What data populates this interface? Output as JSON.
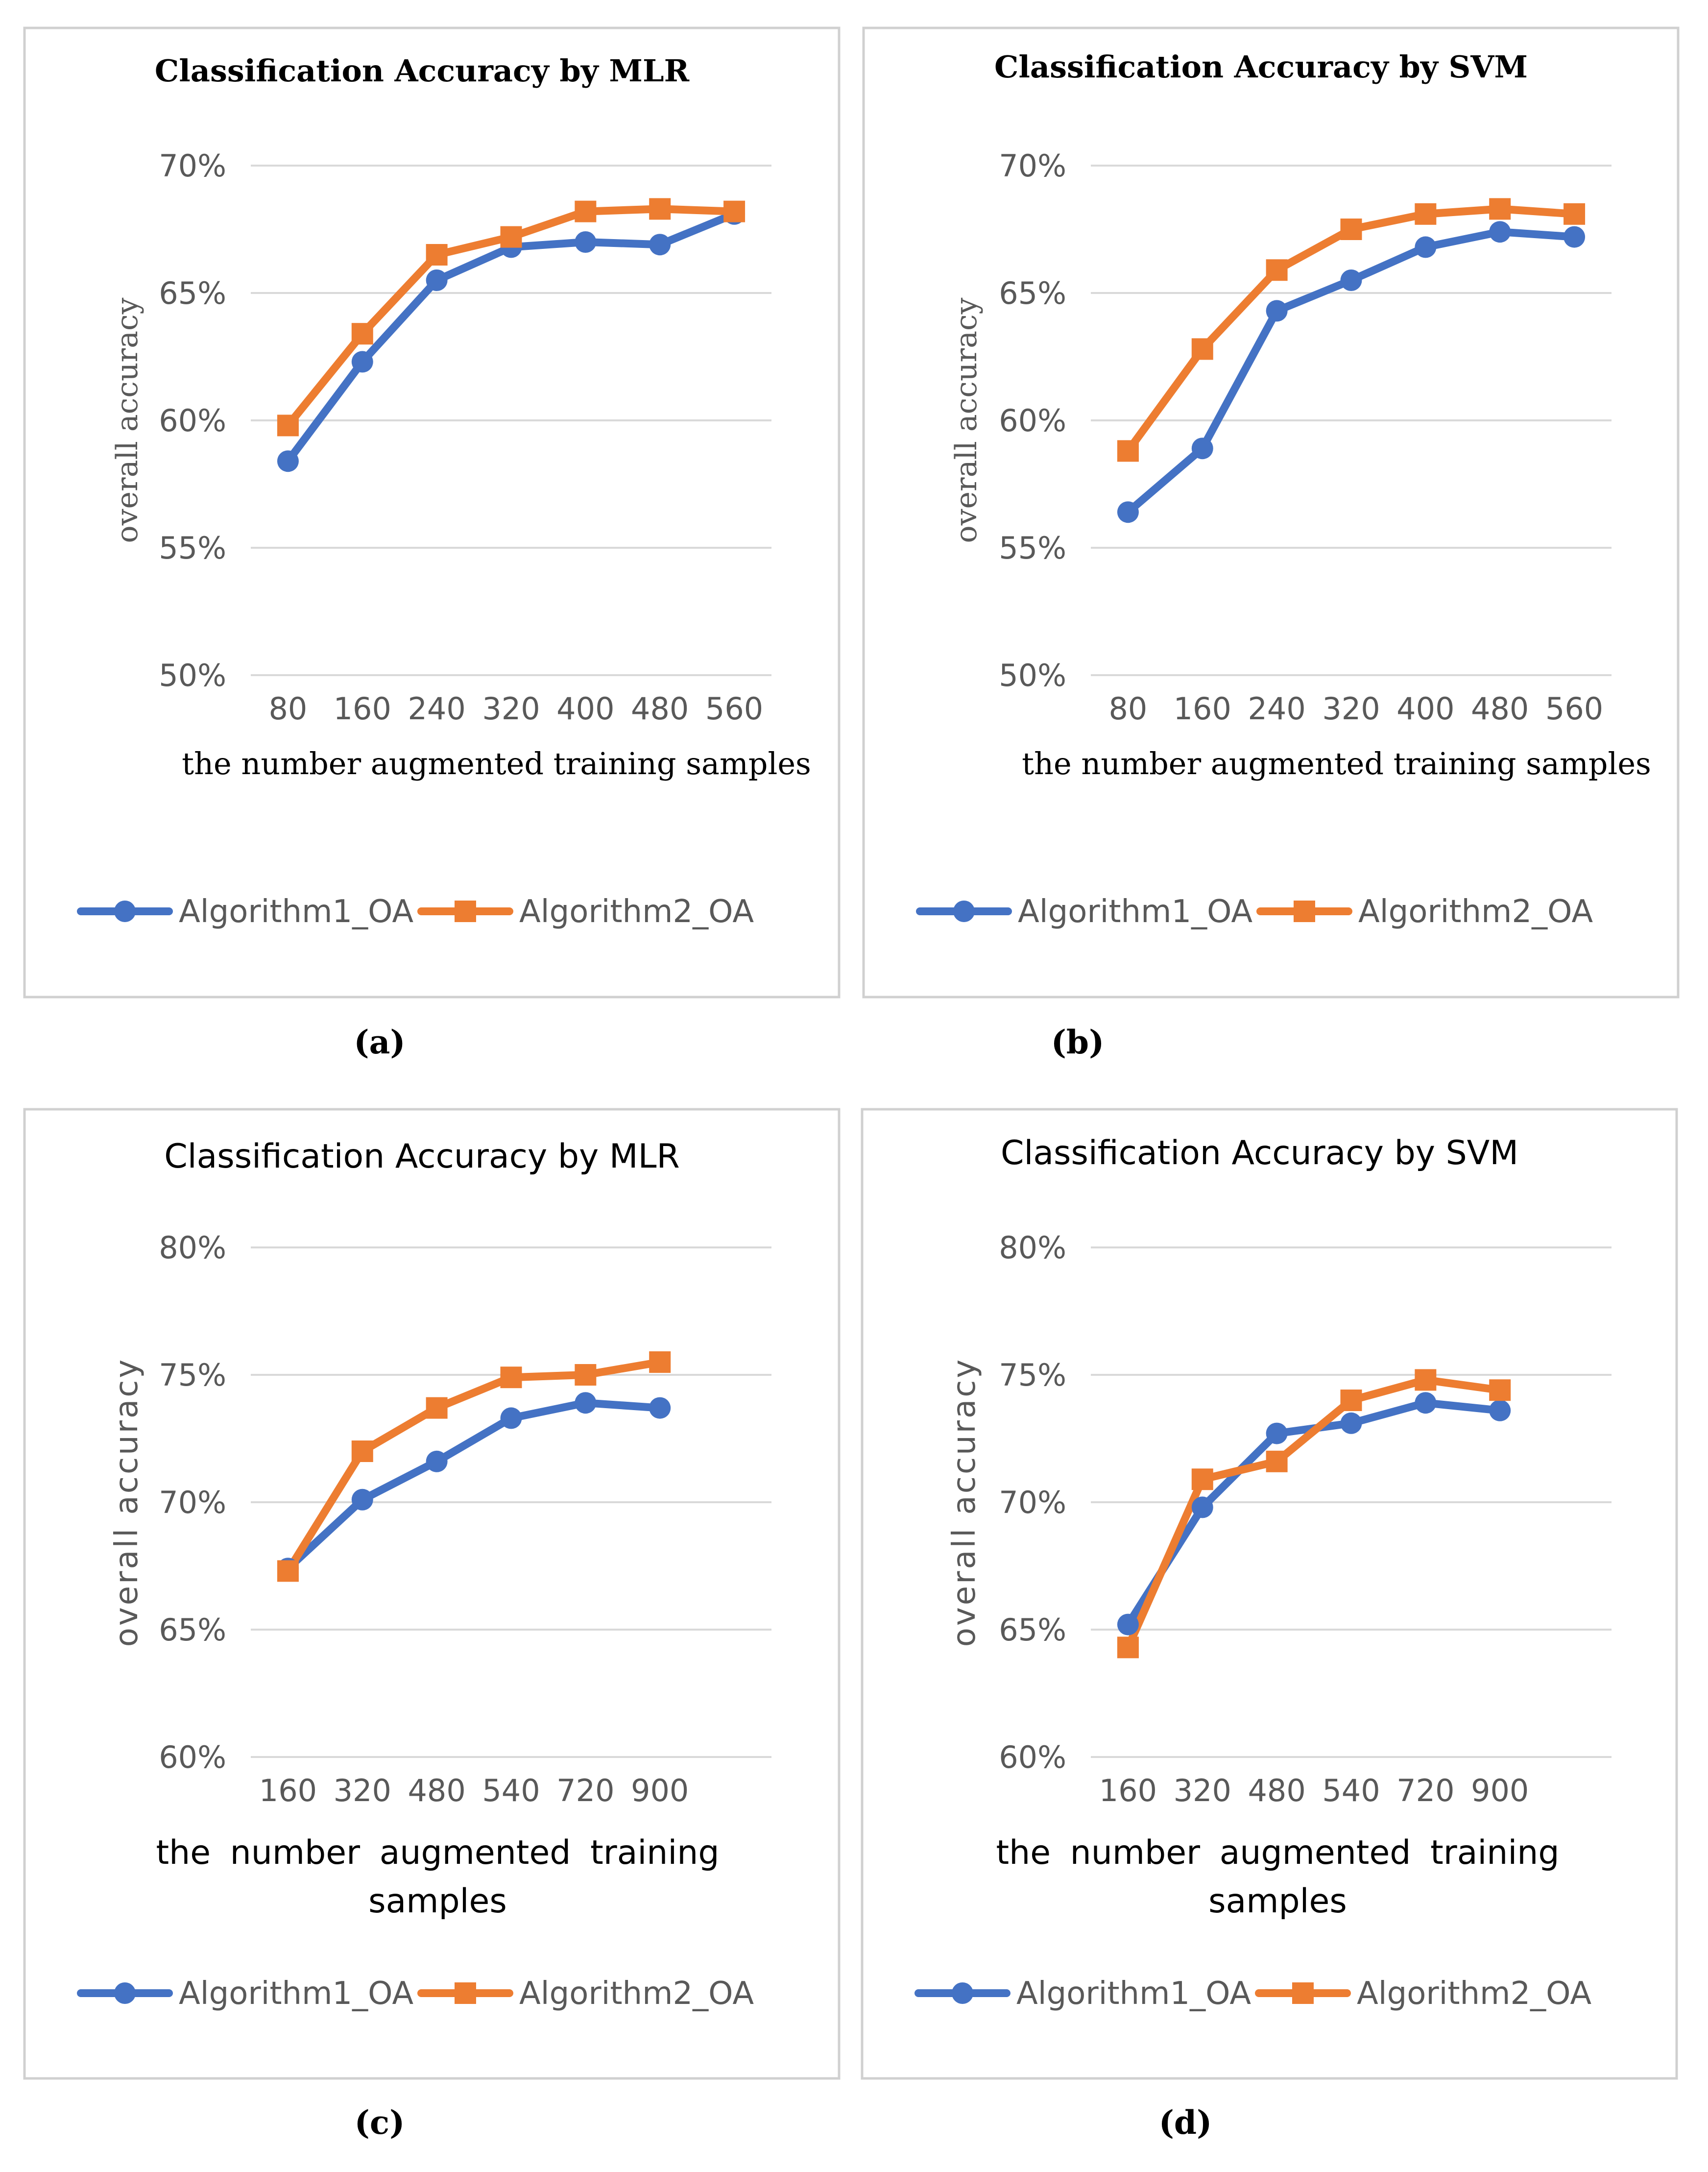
{
  "colors": {
    "algorithm1": "#4472C4",
    "algorithm2": "#ED7D31",
    "grid": "#D9D9D9",
    "frame": "#D0D0D0",
    "text": "#000000",
    "tick": "#595959"
  },
  "chart_data": [
    {
      "panel": "(a)",
      "type": "line",
      "title": "Classification Accuracy by MLR",
      "xlabel": "the number augmented training samples",
      "ylabel": "overall accuracy",
      "categories": [
        "80",
        "160",
        "240",
        "320",
        "400",
        "480",
        "560"
      ],
      "y_ticks": [
        "50%",
        "55%",
        "60%",
        "65%",
        "70%"
      ],
      "ylim": [
        50,
        70
      ],
      "legend": "bottom",
      "series": [
        {
          "name": "Algorithm1_OA",
          "marker": "circle",
          "values": [
            58.4,
            62.3,
            65.5,
            66.8,
            67.0,
            66.9,
            68.1
          ]
        },
        {
          "name": "Algorithm2_OA",
          "marker": "square",
          "values": [
            59.8,
            63.4,
            66.5,
            67.2,
            68.2,
            68.3,
            68.2
          ]
        }
      ]
    },
    {
      "panel": "(b)",
      "type": "line",
      "title": "Classification Accuracy  by SVM",
      "xlabel": "the number augmented training samples",
      "ylabel": "overall accuracy",
      "categories": [
        "80",
        "160",
        "240",
        "320",
        "400",
        "480",
        "560"
      ],
      "y_ticks": [
        "50%",
        "55%",
        "60%",
        "65%",
        "70%"
      ],
      "ylim": [
        50,
        70
      ],
      "legend": "bottom",
      "series": [
        {
          "name": "Algorithm1_OA",
          "marker": "circle",
          "values": [
            56.4,
            58.9,
            64.3,
            65.5,
            66.8,
            67.4,
            67.2
          ]
        },
        {
          "name": "Algorithm2_OA",
          "marker": "square",
          "values": [
            58.8,
            62.8,
            65.9,
            67.5,
            68.1,
            68.3,
            68.1
          ]
        }
      ]
    },
    {
      "panel": "(c)",
      "type": "line",
      "title": "Classification Accuracy by MLR",
      "xlabel": "the number augmented training samples",
      "ylabel": "overall accuracy",
      "categories": [
        "160",
        "320",
        "480",
        "540",
        "720",
        "900"
      ],
      "y_ticks": [
        "60%",
        "65%",
        "70%",
        "75%",
        "80%"
      ],
      "ylim": [
        60,
        80
      ],
      "legend": "bottom",
      "series": [
        {
          "name": "Algorithm1_OA",
          "marker": "circle",
          "values": [
            67.4,
            70.1,
            71.6,
            73.3,
            73.9,
            73.7
          ]
        },
        {
          "name": "Algorithm2_OA",
          "marker": "square",
          "values": [
            67.3,
            72.0,
            73.7,
            74.9,
            75.0,
            75.5
          ]
        }
      ]
    },
    {
      "panel": "(d)",
      "type": "line",
      "title": "Classification Accuracy by SVM",
      "xlabel": "the number augmented training samples",
      "ylabel": "overall accuracy",
      "categories": [
        "160",
        "320",
        "480",
        "540",
        "720",
        "900"
      ],
      "y_ticks": [
        "60%",
        "65%",
        "70%",
        "75%",
        "80%"
      ],
      "ylim": [
        60,
        80
      ],
      "legend": "bottom",
      "series": [
        {
          "name": "Algorithm1_OA",
          "marker": "circle",
          "values": [
            65.2,
            69.8,
            72.7,
            73.1,
            73.9,
            73.6
          ]
        },
        {
          "name": "Algorithm2_OA",
          "marker": "square",
          "values": [
            64.3,
            70.9,
            71.6,
            74.0,
            74.8,
            74.4
          ]
        }
      ]
    }
  ]
}
